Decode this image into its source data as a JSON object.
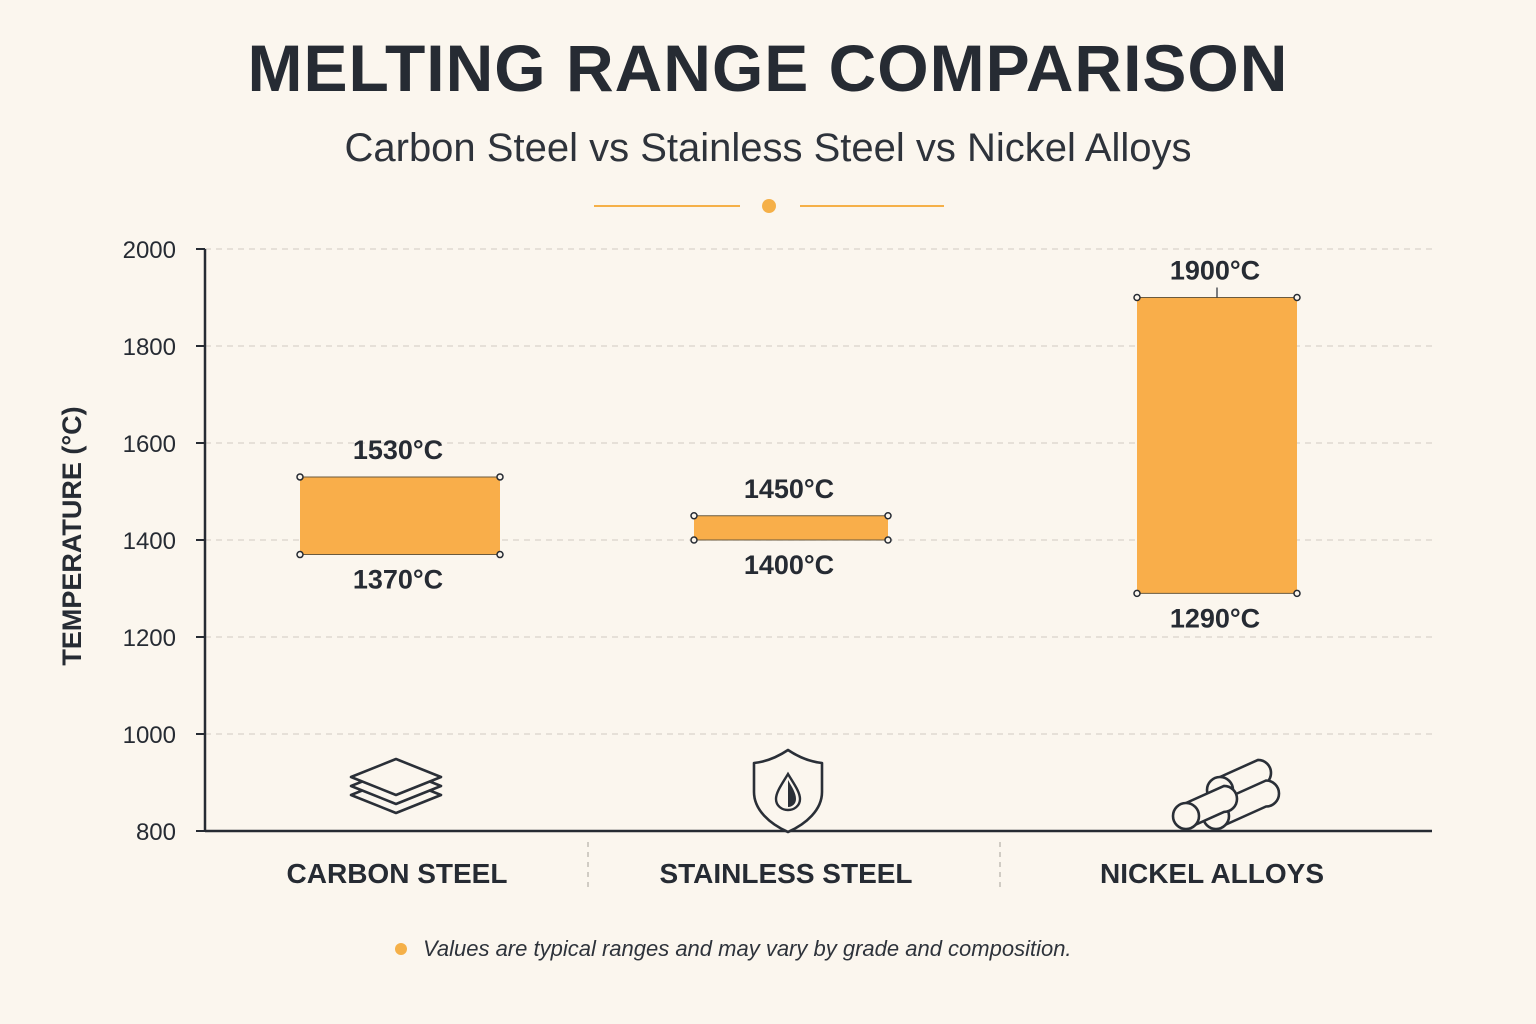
{
  "header": {
    "title": "MELTING RANGE COMPARISON",
    "subtitle": "Carbon Steel vs Stainless Steel vs Nickel Alloys"
  },
  "chart_data": {
    "type": "range-bar",
    "title": "MELTING RANGE COMPARISON",
    "subtitle": "Carbon Steel vs Stainless Steel vs Nickel Alloys",
    "ylabel": "TEMPERATURE (°C)",
    "xlabel": "",
    "ylim": [
      800,
      2000
    ],
    "yticks": [
      800,
      1000,
      1200,
      1400,
      1600,
      1800,
      2000
    ],
    "grid": true,
    "categories": [
      "CARBON STEEL",
      "STAINLESS STEEL",
      "NICKEL ALLOYS"
    ],
    "icons": [
      "stacked-layers-icon",
      "shield-drop-icon",
      "cylinders-icon"
    ],
    "ranges": [
      {
        "low": 1370,
        "high": 1530,
        "low_label": "1370°C",
        "high_label": "1530°C"
      },
      {
        "low": 1400,
        "high": 1450,
        "low_label": "1400°C",
        "high_label": "1450°C"
      },
      {
        "low": 1290,
        "high": 1900,
        "low_label": "1290°C",
        "high_label": "1900°C"
      }
    ],
    "bar_color": "#f9ae4a",
    "accent_color": "#f5b048",
    "axis_color": "#262b33"
  },
  "footer": {
    "note": "Values are typical ranges and may vary by grade and composition."
  }
}
